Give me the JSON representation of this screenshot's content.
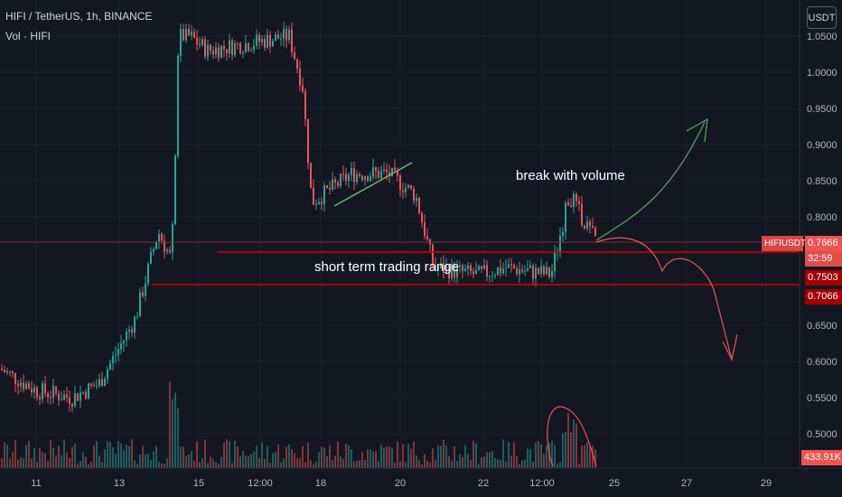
{
  "header": {
    "symbol_title": "HIFI / TetherUS, 1h, BINANCE",
    "volume_label": "Vol · HIFI"
  },
  "currency_button": "USDT",
  "colors": {
    "background": "#131722",
    "grid": "#2a2e39",
    "up": "#26a69a",
    "down": "#ef5350",
    "level_line": "#d50000",
    "trend_line": "#66bb6a",
    "text": "#d1d4dc",
    "axis_text": "#b2b5be"
  },
  "price_scale": {
    "ticks": [
      "1.0500",
      "1.0000",
      "0.9500",
      "0.9000",
      "0.8500",
      "0.8000",
      "0.6500",
      "0.6000",
      "0.5500",
      "0.5000"
    ]
  },
  "time_scale": {
    "ticks": [
      "11",
      "13",
      "15",
      "12:00",
      "18",
      "20",
      "22",
      "12:00",
      "25",
      "27",
      "29"
    ]
  },
  "price_labels": {
    "symbol_tag": "HIFIUSDT",
    "last_price": "0.7666",
    "countdown": "32:59",
    "upper_level": "0.7503",
    "lower_level": "0.7066",
    "volume_value": "433.91K"
  },
  "annotations": {
    "break": "break with volume",
    "range": "short term trading range"
  },
  "chart_data": {
    "type": "candlestick",
    "symbol": "HIFI / TetherUS",
    "interval": "1h",
    "exchange": "BINANCE",
    "last_price": 0.7666,
    "horizontal_levels": [
      0.7503,
      0.7066
    ],
    "ylim": [
      0.45,
      1.07
    ],
    "x_ticks": [
      "11",
      "13",
      "15",
      "12:00",
      "18",
      "20",
      "22",
      "12:00",
      "25",
      "27",
      "29"
    ],
    "price_path": [
      [
        0.56,
        0.55
      ],
      [
        0.57,
        0.55
      ],
      [
        0.6,
        0.58
      ],
      [
        0.64,
        0.62
      ],
      [
        0.72,
        0.74
      ],
      [
        0.8,
        0.83
      ],
      [
        0.75,
        0.78
      ],
      [
        1.05,
        1.0
      ],
      [
        1.02,
        1.05
      ],
      [
        1.0,
        0.94
      ],
      [
        0.9,
        0.86
      ],
      [
        0.8,
        0.84
      ],
      [
        0.86,
        0.91
      ],
      [
        0.85,
        0.85
      ],
      [
        0.76,
        0.73
      ],
      [
        0.72,
        0.73
      ],
      [
        0.73,
        0.72
      ],
      [
        0.72,
        0.75
      ],
      [
        0.83,
        0.8
      ],
      [
        0.77,
        0.76
      ]
    ]
  }
}
